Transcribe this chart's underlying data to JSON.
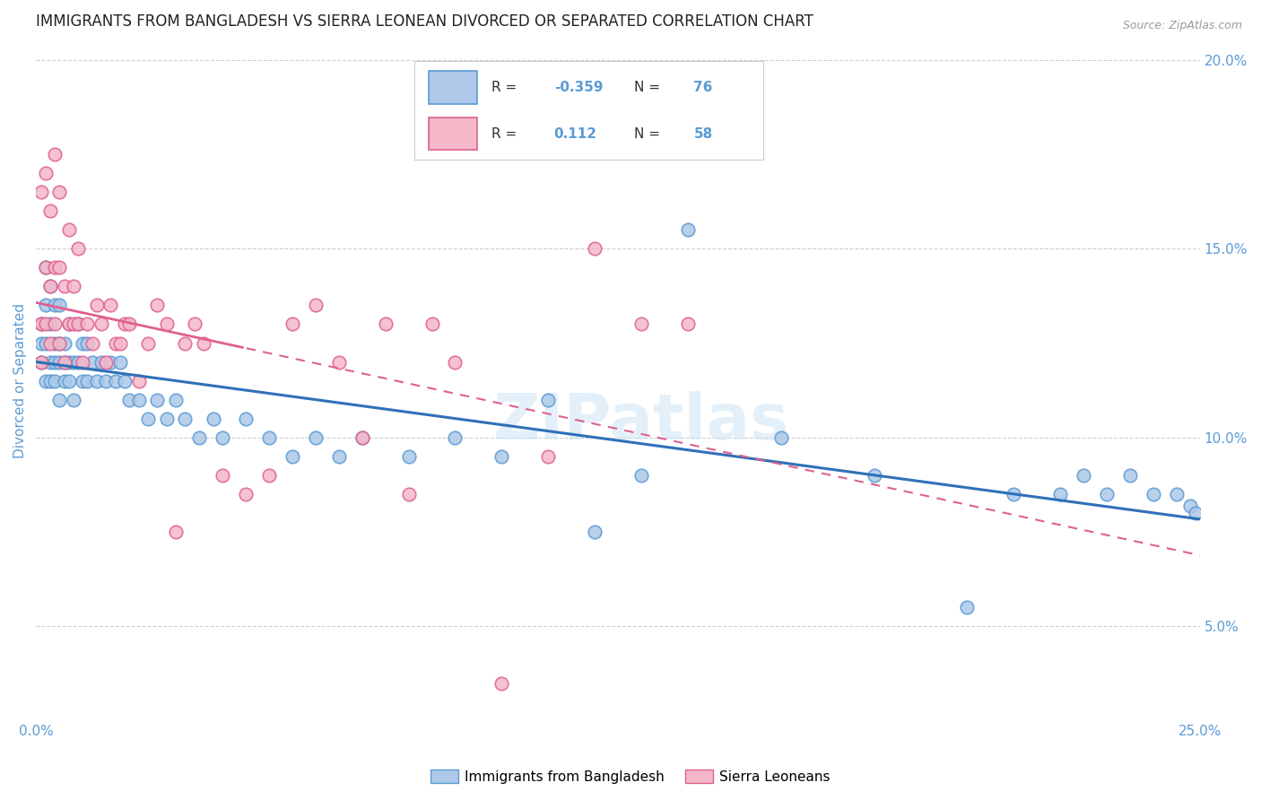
{
  "title": "IMMIGRANTS FROM BANGLADESH VS SIERRA LEONEAN DIVORCED OR SEPARATED CORRELATION CHART",
  "source": "Source: ZipAtlas.com",
  "ylabel": "Divorced or Separated",
  "xlim": [
    0.0,
    0.25
  ],
  "ylim": [
    0.025,
    0.205
  ],
  "x_tick_positions": [
    0.0,
    0.05,
    0.1,
    0.15,
    0.2,
    0.25
  ],
  "x_tick_labels": [
    "0.0%",
    "",
    "",
    "",
    "",
    "25.0%"
  ],
  "y_tick_positions": [
    0.05,
    0.1,
    0.15,
    0.2
  ],
  "y_tick_labels_right": [
    "5.0%",
    "10.0%",
    "15.0%",
    "20.0%"
  ],
  "series1_label": "Immigrants from Bangladesh",
  "series1_color": "#adc8e8",
  "series1_edge_color": "#5b9bd5",
  "series1_R": "-0.359",
  "series1_N": "76",
  "series2_label": "Sierra Leoneans",
  "series2_color": "#f4b8c8",
  "series2_edge_color": "#e06090",
  "series2_R": "0.112",
  "series2_N": "58",
  "trend1_color": "#3070b8",
  "trend2_color": "#e06090",
  "background_color": "#ffffff",
  "title_fontsize": 12,
  "axis_label_color": "#5b9bd5",
  "legend_R_color": "#5b9bd5",
  "series1_x": [
    0.001,
    0.001,
    0.001,
    0.002,
    0.002,
    0.002,
    0.002,
    0.003,
    0.003,
    0.003,
    0.003,
    0.004,
    0.004,
    0.004,
    0.004,
    0.005,
    0.005,
    0.005,
    0.005,
    0.006,
    0.006,
    0.006,
    0.007,
    0.007,
    0.007,
    0.008,
    0.008,
    0.009,
    0.009,
    0.01,
    0.01,
    0.011,
    0.011,
    0.012,
    0.013,
    0.014,
    0.015,
    0.016,
    0.017,
    0.018,
    0.019,
    0.02,
    0.022,
    0.024,
    0.026,
    0.028,
    0.03,
    0.032,
    0.035,
    0.038,
    0.04,
    0.045,
    0.05,
    0.055,
    0.06,
    0.065,
    0.07,
    0.08,
    0.09,
    0.1,
    0.11,
    0.12,
    0.13,
    0.14,
    0.16,
    0.18,
    0.2,
    0.21,
    0.22,
    0.225,
    0.23,
    0.235,
    0.24,
    0.245,
    0.248,
    0.249
  ],
  "series1_y": [
    0.12,
    0.125,
    0.13,
    0.115,
    0.125,
    0.135,
    0.145,
    0.115,
    0.12,
    0.13,
    0.14,
    0.115,
    0.12,
    0.125,
    0.135,
    0.11,
    0.12,
    0.125,
    0.135,
    0.115,
    0.12,
    0.125,
    0.115,
    0.12,
    0.13,
    0.11,
    0.12,
    0.12,
    0.13,
    0.115,
    0.125,
    0.115,
    0.125,
    0.12,
    0.115,
    0.12,
    0.115,
    0.12,
    0.115,
    0.12,
    0.115,
    0.11,
    0.11,
    0.105,
    0.11,
    0.105,
    0.11,
    0.105,
    0.1,
    0.105,
    0.1,
    0.105,
    0.1,
    0.095,
    0.1,
    0.095,
    0.1,
    0.095,
    0.1,
    0.095,
    0.11,
    0.075,
    0.09,
    0.155,
    0.1,
    0.09,
    0.055,
    0.085,
    0.085,
    0.09,
    0.085,
    0.09,
    0.085,
    0.085,
    0.082,
    0.08
  ],
  "series2_x": [
    0.001,
    0.001,
    0.001,
    0.002,
    0.002,
    0.002,
    0.003,
    0.003,
    0.003,
    0.004,
    0.004,
    0.004,
    0.005,
    0.005,
    0.005,
    0.006,
    0.006,
    0.007,
    0.007,
    0.008,
    0.008,
    0.009,
    0.009,
    0.01,
    0.011,
    0.012,
    0.013,
    0.014,
    0.015,
    0.016,
    0.017,
    0.018,
    0.019,
    0.02,
    0.022,
    0.024,
    0.026,
    0.028,
    0.03,
    0.032,
    0.034,
    0.036,
    0.04,
    0.045,
    0.05,
    0.055,
    0.06,
    0.065,
    0.07,
    0.075,
    0.08,
    0.085,
    0.09,
    0.1,
    0.11,
    0.12,
    0.13,
    0.14
  ],
  "series2_y": [
    0.12,
    0.13,
    0.165,
    0.13,
    0.145,
    0.17,
    0.125,
    0.14,
    0.16,
    0.13,
    0.145,
    0.175,
    0.125,
    0.145,
    0.165,
    0.12,
    0.14,
    0.13,
    0.155,
    0.13,
    0.14,
    0.13,
    0.15,
    0.12,
    0.13,
    0.125,
    0.135,
    0.13,
    0.12,
    0.135,
    0.125,
    0.125,
    0.13,
    0.13,
    0.115,
    0.125,
    0.135,
    0.13,
    0.075,
    0.125,
    0.13,
    0.125,
    0.09,
    0.085,
    0.09,
    0.13,
    0.135,
    0.12,
    0.1,
    0.13,
    0.085,
    0.13,
    0.12,
    0.035,
    0.095,
    0.15,
    0.13,
    0.13
  ]
}
